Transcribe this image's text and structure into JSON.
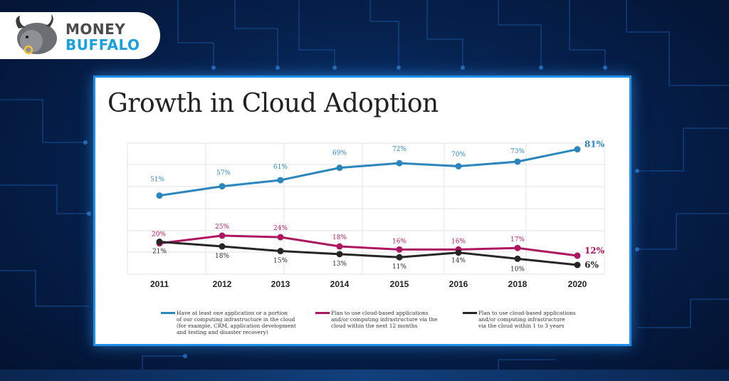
{
  "brand": {
    "line1": "MONEY",
    "line2": "BUFFALO"
  },
  "chart_data": {
    "type": "line",
    "title": "Growth in Cloud Adoption",
    "categories": [
      "2011",
      "2012",
      "2013",
      "2014",
      "2015",
      "2016",
      "2018",
      "2020"
    ],
    "ylim": [
      0,
      85
    ],
    "series": [
      {
        "name": "Have at least one application or a portion of our computing infrastructure in the cloud (for example, CRM, application development and testing and disaster recovery)",
        "legend_lines": [
          "Have at least one application or a portion",
          "of our computing infrastructure in the cloud",
          "(for example, CRM, application development",
          "and testing and disaster recovery)"
        ],
        "color": "#2a86bd",
        "values": [
          51,
          57,
          61,
          69,
          72,
          70,
          73,
          81
        ],
        "labels": [
          "51%",
          "57%",
          "61%",
          "69%",
          "72%",
          "70%",
          "73%",
          "81%"
        ]
      },
      {
        "name": "Plan to use cloud-based applications and/or computing infrastructure via the cloud within the next 12 months",
        "legend_lines": [
          "Plan to use cloud-based applications",
          "and/or computing infrastructure via the",
          "cloud within the next 12 months"
        ],
        "color": "#ad1660",
        "values": [
          20,
          25,
          24,
          18,
          16,
          16,
          17,
          12
        ],
        "labels": [
          "20%",
          "25%",
          "24%",
          "18%",
          "16%",
          "16%",
          "17%",
          "12%"
        ]
      },
      {
        "name": "Plan to use cloud-based applications and/or computing infrastructure via the cloud within 1 to 3 years",
        "legend_lines": [
          "Plan to use cloud-based applications",
          "and/or computing infrastructure",
          "via the cloud within 1 to 3 years"
        ],
        "color": "#262626",
        "values": [
          21,
          18,
          15,
          13,
          11,
          14,
          10,
          6
        ],
        "labels": [
          "21%",
          "18%",
          "15%",
          "13%",
          "11%",
          "14%",
          "10%",
          "6%"
        ]
      }
    ]
  }
}
